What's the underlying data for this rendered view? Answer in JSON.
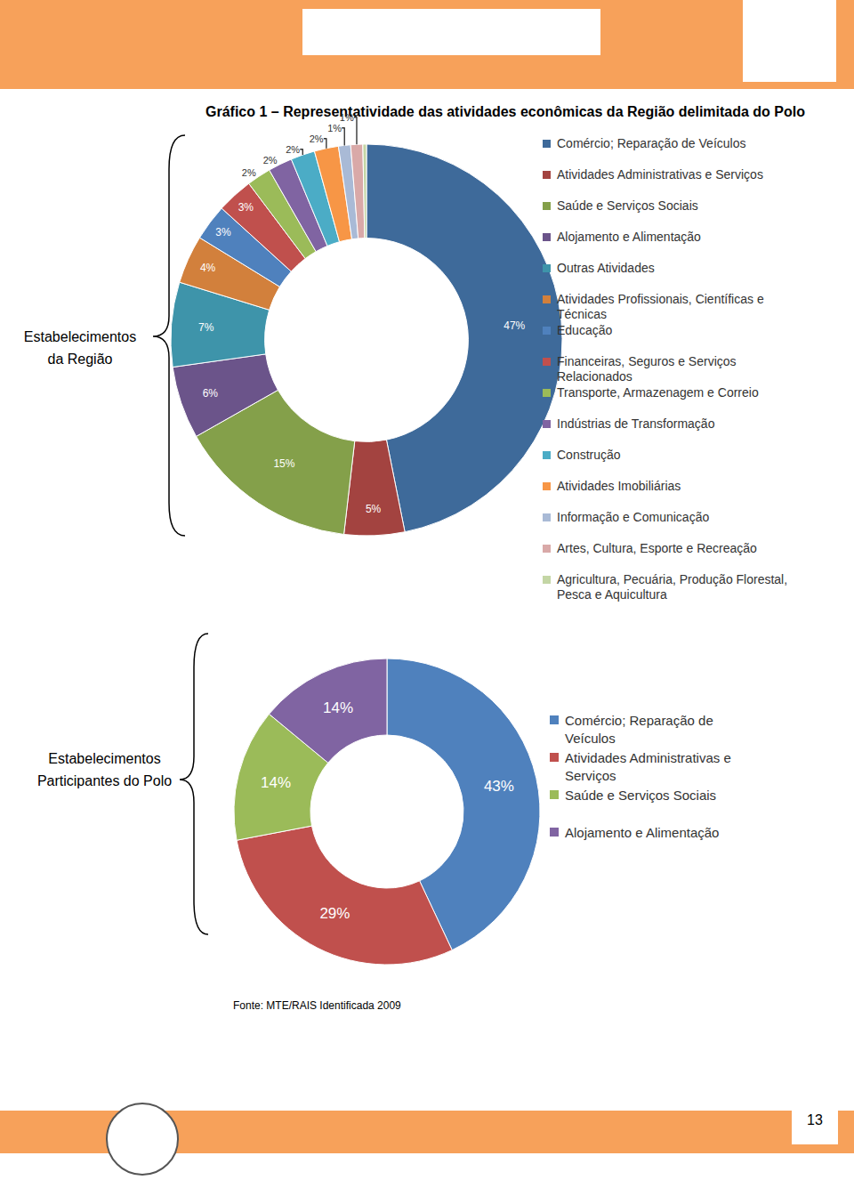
{
  "title": "Gráfico 1 – Representatividade das atividades econômicas da Região delimitada do Polo",
  "source": "Fonte: MTE/RAIS Identificada 2009",
  "page": "13",
  "chart_data": [
    {
      "type": "pie",
      "group_label": "Estabelecimentos da Região",
      "categories": [
        "Comércio; Reparação de Veículos",
        "Atividades Administrativas e Serviços",
        "Saúde e Serviços Sociais",
        "Alojamento e Alimentação",
        "Outras Atividades",
        "Atividades Profissionais, Científicas e Técnicas",
        "Educação",
        "Financeiras, Seguros e Serviços Relacionados",
        "Transporte, Armazenagem e Correio",
        "Indústrias de Transformação",
        "Construção",
        "Atividades Imobiliárias",
        "Informação e Comunicação",
        "Artes, Cultura, Esporte e Recreação",
        "Agricultura, Pecuária, Produção Florestal, Pesca e Aquicultura"
      ],
      "values": [
        47,
        5,
        15,
        6,
        7,
        4,
        3,
        3,
        2,
        2,
        2,
        2,
        1,
        1,
        0.3
      ],
      "value_labels": [
        "47%",
        "5%",
        "15%",
        "6%",
        "7%",
        "4%",
        "3%",
        "3%",
        "2%",
        "2%",
        "2%",
        "2%",
        "1%",
        "1%",
        null
      ],
      "colors": [
        "#3E6A9A",
        "#A34340",
        "#84A04A",
        "#6B548A",
        "#3E94AA",
        "#D2803C",
        "#4F81BD",
        "#C0504D",
        "#9BBB59",
        "#8064A2",
        "#4BACC6",
        "#F79646",
        "#A9BAD6",
        "#D9A9A8",
        "#C4D6A5"
      ],
      "data_labels": true,
      "legend": "right"
    },
    {
      "type": "pie",
      "group_label": "Estabelecimentos Participantes do Polo",
      "categories": [
        "Comércio; Reparação de Veículos",
        "Atividades Administrativas e Serviços",
        "Saúde e Serviços Sociais",
        "Alojamento e Alimentação"
      ],
      "values": [
        43,
        29,
        14,
        14
      ],
      "value_labels": [
        "43%",
        "29%",
        "14%",
        "14%"
      ],
      "colors": [
        "#4F81BD",
        "#C0504D",
        "#9BBB59",
        "#8064A2"
      ],
      "data_labels": true,
      "legend": "right"
    }
  ]
}
